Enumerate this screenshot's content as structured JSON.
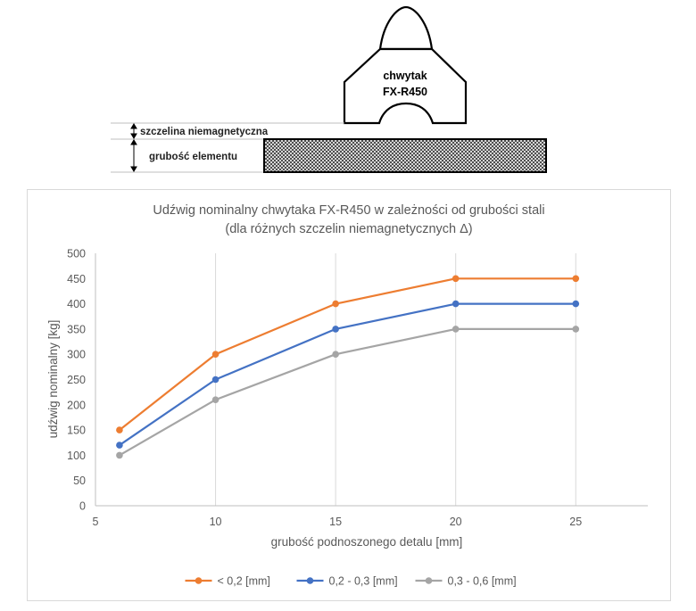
{
  "diagram": {
    "gripper_label_line1": "chwytak",
    "gripper_label_line2": "FX-R450",
    "gap_label": "szczelina niemagnetyczna",
    "thickness_label": "grubość elementu"
  },
  "chart_data": {
    "type": "line",
    "title": "Udźwig nominalny chwytaka FX-R450 w zależności od grubości stali",
    "subtitle": "(dla różnych szczelin niemagnetycznych Δ)",
    "xlabel": "grubość podnoszonego detalu [mm]",
    "ylabel": "udźwig nominalny [kg]",
    "xlim": [
      5,
      28
    ],
    "ylim": [
      0,
      500
    ],
    "xticks": [
      5,
      10,
      15,
      20,
      25
    ],
    "yticks": [
      0,
      50,
      100,
      150,
      200,
      250,
      300,
      350,
      400,
      450,
      500
    ],
    "grid": "vertical",
    "legend_position": "bottom",
    "x": [
      6,
      10,
      15,
      20,
      25
    ],
    "series": [
      {
        "name": "< 0,2 [mm]",
        "color": "#ED7D31",
        "values": [
          150,
          300,
          400,
          450,
          450
        ]
      },
      {
        "name": "0,2 - 0,3 [mm]",
        "color": "#4472C4",
        "values": [
          120,
          250,
          350,
          400,
          400
        ]
      },
      {
        "name": "0,3 - 0,6 [mm]",
        "color": "#A5A5A5",
        "values": [
          100,
          210,
          300,
          350,
          350
        ]
      }
    ]
  }
}
